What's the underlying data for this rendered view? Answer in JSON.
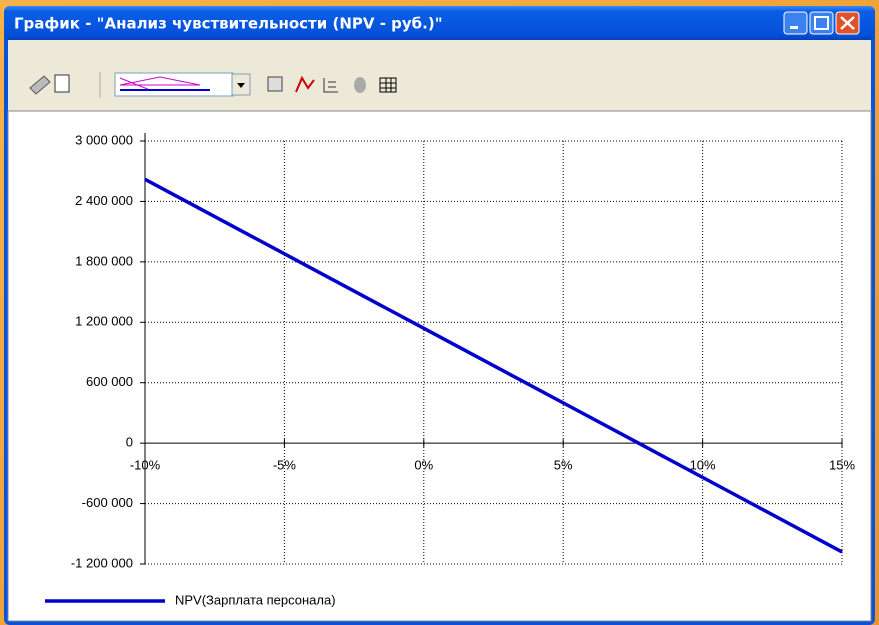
{
  "window": {
    "title": "График - \"Анализ чувствительности (NPV - руб.)\""
  },
  "chart_data": {
    "type": "line",
    "x": [
      -10,
      -5,
      0,
      5,
      10,
      15
    ],
    "series": [
      {
        "name": "NPV(Зарплата персонала)",
        "color": "#0000cc",
        "values": [
          2620000,
          1880000,
          1140000,
          400000,
          -340000,
          -1080000
        ]
      }
    ],
    "xlim": [
      -10,
      15
    ],
    "xticks": [
      {
        "value": -10,
        "label": "-10%"
      },
      {
        "value": -5,
        "label": "-5%"
      },
      {
        "value": 0,
        "label": "0%"
      },
      {
        "value": 5,
        "label": "5%"
      },
      {
        "value": 10,
        "label": "10%"
      },
      {
        "value": 15,
        "label": "15%"
      }
    ],
    "ylim": [
      -1200000,
      3000000
    ],
    "yticks": [
      {
        "value": -1200000,
        "label": "-1 200 000"
      },
      {
        "value": -600000,
        "label": "-600 000"
      },
      0,
      {
        "value": 600000,
        "label": "600 000"
      },
      {
        "value": 1200000,
        "label": "1 200 000"
      },
      {
        "value": 1800000,
        "label": "1 800 000"
      },
      {
        "value": 2400000,
        "label": "2 400 000"
      },
      {
        "value": 3000000,
        "label": "3 000 000"
      }
    ],
    "grid": true,
    "legend": "bottom-left"
  }
}
